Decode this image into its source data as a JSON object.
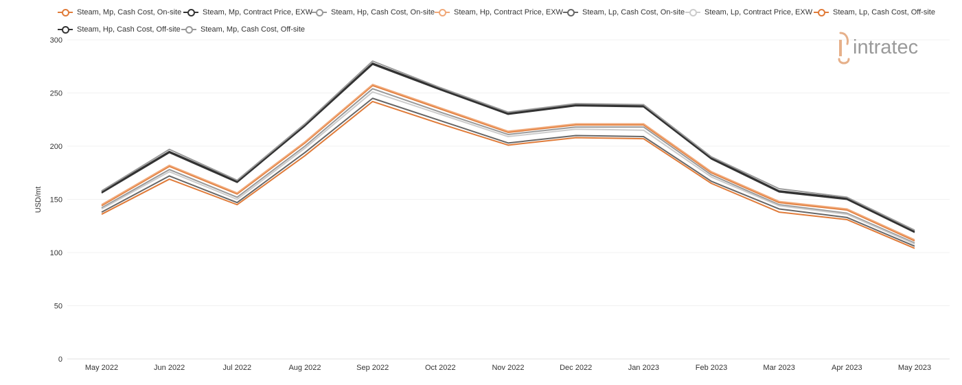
{
  "chart_data": {
    "type": "line",
    "ylabel": "USD/mt",
    "ylim": [
      0,
      300
    ],
    "yticks": [
      0,
      50,
      100,
      150,
      200,
      250,
      300
    ],
    "grid": true,
    "legend_position": "top",
    "categories": [
      "May 2022",
      "Jun 2022",
      "Jul 2022",
      "Aug 2022",
      "Sep 2022",
      "Oct 2022",
      "Nov 2022",
      "Dec 2022",
      "Jan 2023",
      "Feb 2023",
      "Mar 2023",
      "Apr 2023",
      "May 2023"
    ],
    "series": [
      {
        "name": "Steam, Mp, Cash Cost, On-site",
        "color": "#e07b39",
        "values": [
          144,
          181,
          155,
          203,
          257,
          235,
          213,
          220,
          220,
          175,
          147,
          140,
          111
        ]
      },
      {
        "name": "Steam, Mp, Contract Price, EXW",
        "color": "#333333",
        "values": [
          156,
          194,
          166,
          219,
          277,
          253,
          230,
          238,
          237,
          188,
          157,
          150,
          119
        ]
      },
      {
        "name": "Steam, Hp, Cash Cost, On-site",
        "color": "#999999",
        "values": [
          142,
          178,
          152,
          200,
          254,
          232,
          211,
          218,
          218,
          173,
          145,
          137,
          109
        ]
      },
      {
        "name": "Steam, Hp, Contract Price, EXW",
        "color": "#f0a878",
        "values": [
          145,
          182,
          156,
          204,
          258,
          236,
          214,
          221,
          221,
          176,
          148,
          141,
          112
        ]
      },
      {
        "name": "Steam, Lp, Cash Cost, On-site",
        "color": "#666666",
        "values": [
          138,
          172,
          147,
          194,
          245,
          224,
          203,
          210,
          209,
          167,
          141,
          133,
          106
        ]
      },
      {
        "name": "Steam, Lp, Contract Price, EXW",
        "color": "#cccccc",
        "values": [
          141,
          176,
          150,
          198,
          251,
          230,
          209,
          216,
          215,
          171,
          144,
          136,
          108
        ]
      },
      {
        "name": "Steam, Lp, Cash Cost, Off-site",
        "color": "#e07b39",
        "values": [
          136,
          169,
          145,
          191,
          242,
          221,
          201,
          208,
          207,
          165,
          138,
          131,
          104
        ]
      },
      {
        "name": "Steam, Hp, Cash Cost, Off-site",
        "color": "#333333",
        "values": [
          157,
          195,
          167,
          220,
          278,
          254,
          231,
          239,
          238,
          189,
          158,
          151,
          120
        ]
      },
      {
        "name": "Steam, Mp, Cash Cost, Off-site",
        "color": "#999999",
        "values": [
          158,
          197,
          168,
          221,
          280,
          255,
          232,
          240,
          239,
          190,
          160,
          152,
          121
        ]
      }
    ]
  },
  "legend": {
    "items": [
      "Steam, Mp, Cash Cost, On-site",
      "Steam, Mp, Contract Price, EXW",
      "Steam, Hp, Cash Cost, On-site",
      "Steam, Hp, Contract Price, EXW",
      "Steam, Lp, Cash Cost, On-site",
      "Steam, Lp, Contract Price, EXW",
      "Steam, Lp, Cash Cost, Off-site",
      "Steam, Hp, Cash Cost, Off-site",
      "Steam, Mp, Cash Cost, Off-site"
    ]
  },
  "logo": {
    "text": "intratec",
    "icon": "intratec-logo-icon",
    "colors": {
      "mark": "#e6b08a",
      "text": "#9a9a9a"
    }
  }
}
